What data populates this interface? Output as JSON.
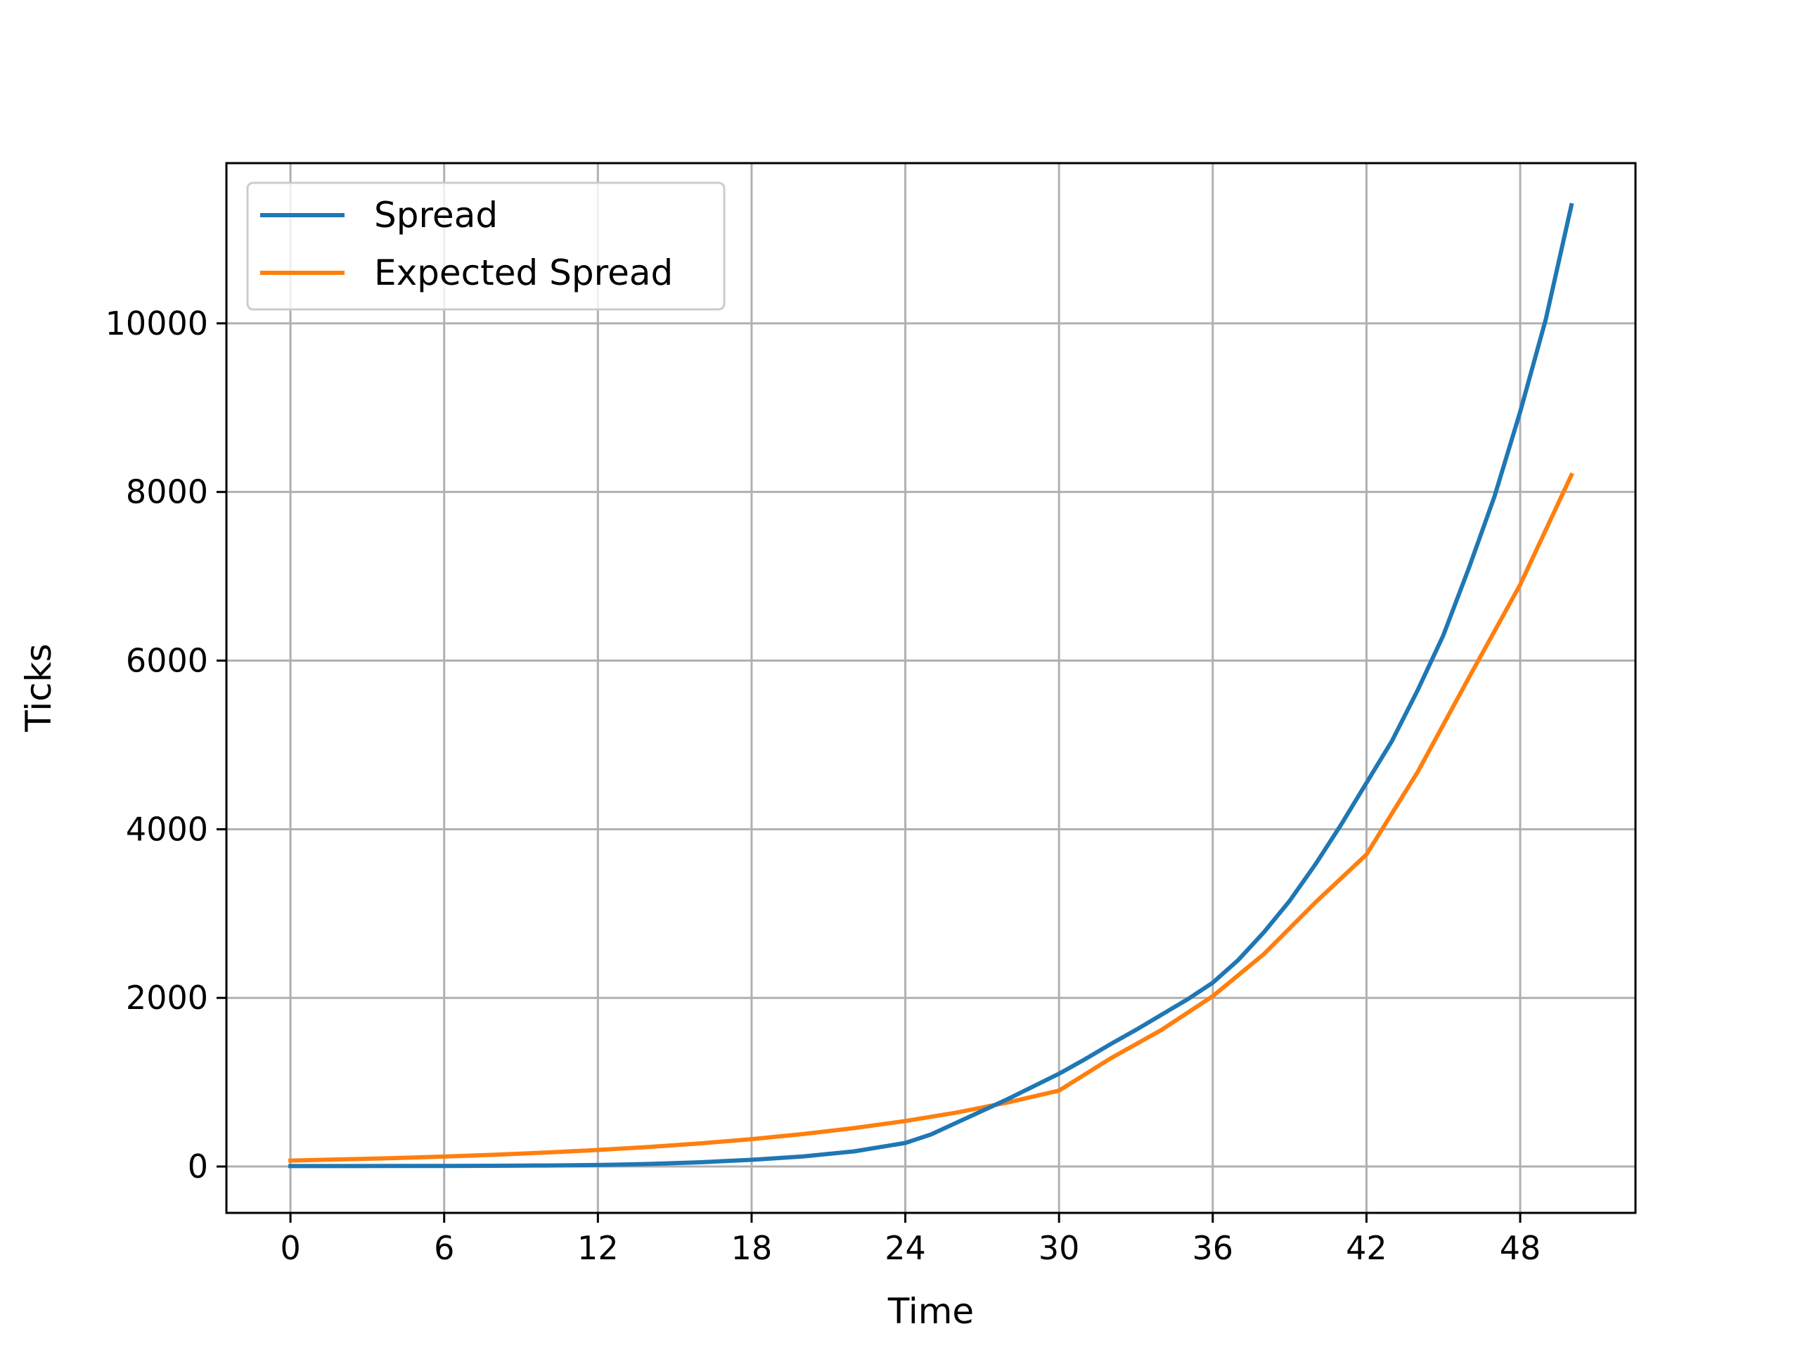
{
  "chart_data": {
    "type": "line",
    "title": "",
    "xlabel": "Time",
    "ylabel": "Ticks",
    "xlim": [
      -2.5,
      52.5
    ],
    "ylim": [
      -550,
      11900
    ],
    "xticks": [
      0,
      6,
      12,
      18,
      24,
      30,
      36,
      42,
      48
    ],
    "yticks": [
      0,
      2000,
      4000,
      6000,
      8000,
      10000
    ],
    "grid": true,
    "legend_position": "upper-left",
    "series": [
      {
        "name": "Spread",
        "color": "#1f77b4",
        "x": [
          0,
          2,
          4,
          6,
          8,
          10,
          12,
          14,
          16,
          18,
          20,
          22,
          24,
          25,
          26,
          27,
          28,
          29,
          30,
          31,
          32,
          33,
          34,
          35,
          36,
          37,
          38,
          39,
          40,
          41,
          42,
          43,
          44,
          45,
          46,
          47,
          48,
          49,
          50
        ],
        "values": [
          5,
          5,
          6,
          7,
          9,
          12,
          18,
          30,
          50,
          80,
          120,
          180,
          280,
          380,
          520,
          660,
          800,
          950,
          1100,
          1270,
          1450,
          1620,
          1800,
          1980,
          2180,
          2450,
          2780,
          3150,
          3580,
          4050,
          4550,
          5050,
          5650,
          6300,
          7100,
          7950,
          8950,
          10050,
          11400
        ]
      },
      {
        "name": "Expected Spread",
        "color": "#ff7f0e",
        "x": [
          0,
          2,
          4,
          6,
          8,
          10,
          12,
          14,
          16,
          18,
          20,
          22,
          24,
          26,
          28,
          30,
          32,
          34,
          36,
          38,
          40,
          42,
          44,
          46,
          48,
          50
        ],
        "values": [
          70,
          85,
          100,
          118,
          140,
          166,
          196,
          232,
          275,
          325,
          385,
          456,
          540,
          640,
          760,
          900,
          1280,
          1620,
          2020,
          2520,
          3130,
          3700,
          4680,
          5800,
          6900,
          8200
        ]
      }
    ]
  }
}
